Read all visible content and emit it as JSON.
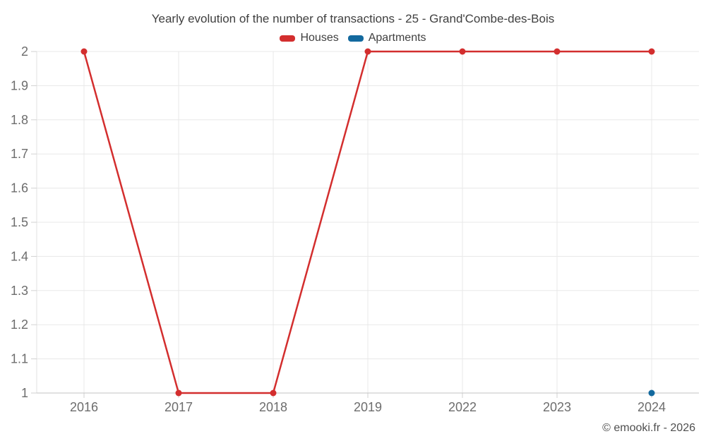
{
  "chart": {
    "title": "Yearly evolution of the number of transactions - 25 - Grand'Combe-des-Bois",
    "copyright": "© emooki.fr - 2026"
  },
  "chart_data": {
    "type": "line",
    "title": "Yearly evolution of the number of transactions - 25 - Grand'Combe-des-Bois",
    "categories": [
      "2016",
      "2017",
      "2018",
      "2019",
      "2022",
      "2023",
      "2024"
    ],
    "series": [
      {
        "name": "Houses",
        "color": "#d32e2e",
        "values": [
          2,
          1,
          1,
          2,
          2,
          2,
          2
        ]
      },
      {
        "name": "Apartments",
        "color": "#13699e",
        "values": [
          null,
          null,
          null,
          null,
          null,
          null,
          1
        ]
      }
    ],
    "ylim": [
      1,
      2
    ],
    "yticks": [
      "1",
      "1.1",
      "1.2",
      "1.3",
      "1.4",
      "1.5",
      "1.6",
      "1.7",
      "1.8",
      "1.9",
      "2"
    ],
    "xlabel": "",
    "ylabel": "",
    "grid": true,
    "legend_position": "top",
    "marker_radius": 4.5,
    "line_width": 2.5,
    "colors": {
      "grid_line": "#e8e8e8",
      "axis_line": "#c3c3c3",
      "y_axis_line": "#e0e0e0",
      "tick_mark": "#d2d2d2",
      "tick_label": "#6d6d6d"
    }
  }
}
